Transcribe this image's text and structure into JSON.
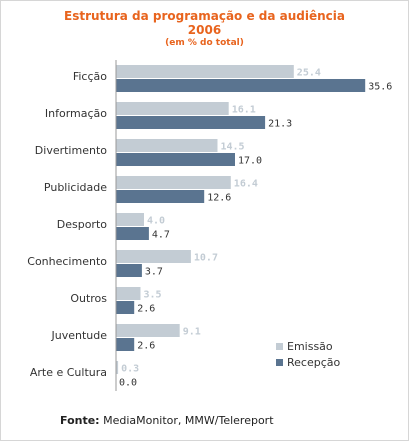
{
  "chart_data": {
    "type": "bar",
    "orientation": "horizontal",
    "title": "Estrutura da programação e da audiência",
    "year": "2006",
    "subtitle": "(em % do total)",
    "categories": [
      "Ficção",
      "Informação",
      "Divertimento",
      "Publicidade",
      "Desporto",
      "Conhecimento",
      "Outros",
      "Juventude",
      "Arte e Cultura"
    ],
    "series": [
      {
        "name": "Emissão",
        "color": "#c3ccd4",
        "values": [
          25.4,
          16.1,
          14.5,
          16.4,
          4.0,
          10.7,
          3.5,
          9.1,
          0.3
        ],
        "labels": [
          "25.4",
          "16.1",
          "14.5",
          "16.4",
          "4.0",
          "10.7",
          "3.5",
          "9.1",
          "0.3"
        ]
      },
      {
        "name": "Recepção",
        "color": "#5a7490",
        "values": [
          35.6,
          21.3,
          17.0,
          12.6,
          4.7,
          3.7,
          2.6,
          2.6,
          0.0
        ],
        "labels": [
          "35.6",
          "21.3",
          "17.0",
          "12.6",
          "4.7",
          "3.7",
          "2.6",
          "2.6",
          "0.0"
        ]
      }
    ],
    "xlim": [
      0,
      40
    ],
    "legend_position": "bottom-right",
    "grid": false
  },
  "footer": {
    "label": "Fonte:",
    "text": " MediaMonitor, MMW/Telereport"
  }
}
